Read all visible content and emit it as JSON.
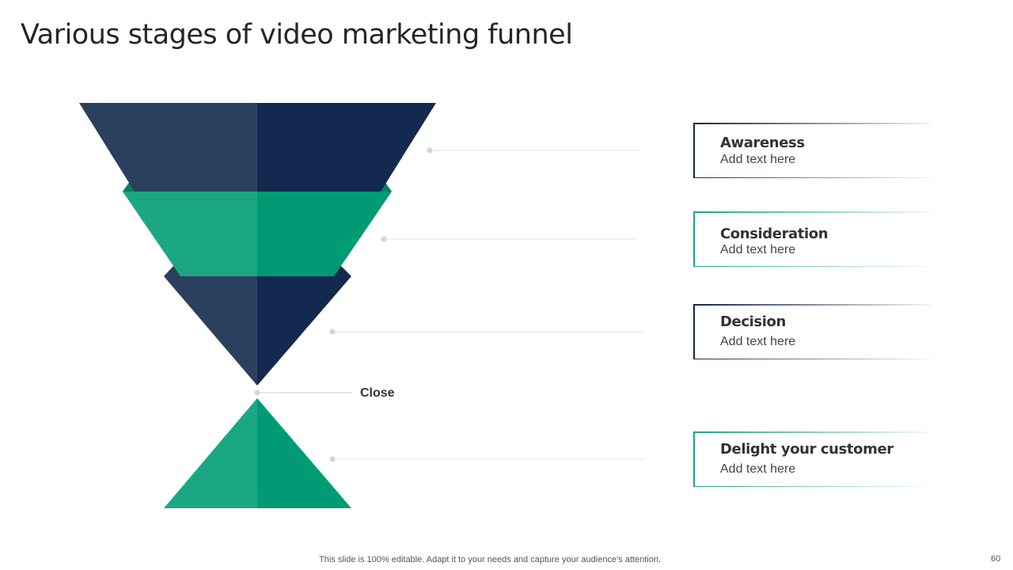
{
  "title": "Various stages of video marketing funnel",
  "stages": [
    {
      "heading": "Awareness",
      "text": "Add text here",
      "color": "#14294f"
    },
    {
      "heading": "Consideration",
      "text": "Add text here",
      "color": "#1ca784"
    },
    {
      "heading": "Decision",
      "text": "Add text here",
      "color": "#14294f"
    },
    {
      "heading": "Delight your customer",
      "text": "Add text here",
      "color": "#1ca784"
    }
  ],
  "close_label": "Close",
  "footer": "This slide is 100% editable. Adapt it to your needs and capture your audience's attention.",
  "page_number": "60",
  "colors": {
    "navy_light": "#2b3f5f",
    "navy_dark": "#14294f",
    "green_light": "#1ca784",
    "green_dark": "#009b74"
  }
}
